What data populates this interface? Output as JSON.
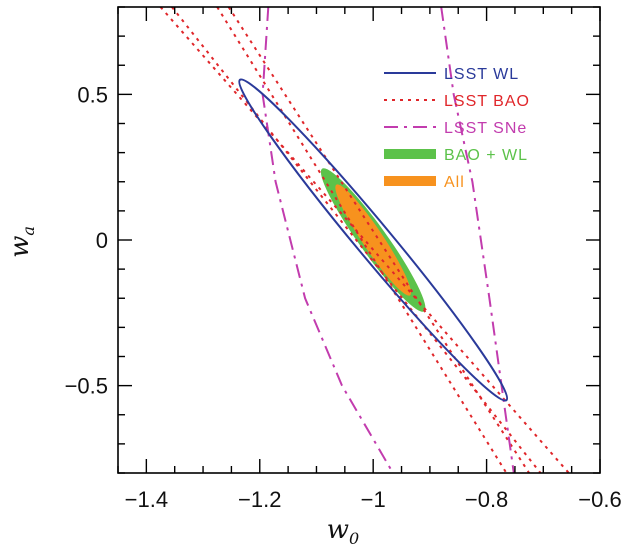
{
  "chart_data": {
    "type": "contour",
    "xlabel": "w",
    "xlabel_sub": "0",
    "ylabel": "w",
    "ylabel_sub": "a",
    "xlim": [
      -1.45,
      -0.6
    ],
    "ylim": [
      -0.8,
      0.8
    ],
    "x_ticks": [
      -1.4,
      -1.2,
      -1.0,
      -0.8,
      -0.6
    ],
    "x_tick_labels": [
      "−1.4",
      "−1.2",
      "−1",
      "−0.8",
      "−0.6"
    ],
    "y_ticks": [
      -0.5,
      0,
      0.5
    ],
    "y_tick_labels": [
      "−0.5",
      "0",
      "0.5"
    ],
    "legend_position": "top-right",
    "fiducial": {
      "w0": -1.0,
      "wa": 0.0
    },
    "series": [
      {
        "name": "LSST WL",
        "kind": "ellipse",
        "style": "solid",
        "color": "#2a3a9a",
        "center": [
          -1.0,
          0.0
        ],
        "endpoints": [
          [
            -1.235,
            0.55
          ],
          [
            -0.765,
            -0.55
          ]
        ],
        "minor_half_width_x": 0.04
      },
      {
        "name": "LSST BAO",
        "kind": "lines",
        "style": "dotted",
        "color": "#e0262a",
        "lines": [
          [
            [
              -1.375,
              0.8
            ],
            [
              -0.655,
              -0.8
            ]
          ],
          [
            [
              -1.355,
              0.8
            ],
            [
              -0.705,
              -0.8
            ]
          ],
          [
            [
              -1.275,
              0.8
            ],
            [
              -0.765,
              -0.8
            ]
          ],
          [
            [
              -1.255,
              0.8
            ],
            [
              -0.725,
              -0.8
            ]
          ]
        ]
      },
      {
        "name": "LSST SNe",
        "kind": "lines",
        "style": "dashdot",
        "color": "#c23cae",
        "lines": [
          [
            [
              -1.185,
              0.8
            ],
            [
              -1.195,
              0.5
            ],
            [
              -1.172,
              0.2
            ],
            [
              -1.12,
              -0.2
            ],
            [
              -1.055,
              -0.5
            ],
            [
              -0.965,
              -0.8
            ]
          ],
          [
            [
              -0.88,
              0.8
            ],
            [
              -0.858,
              0.5
            ],
            [
              -0.825,
              0.2
            ],
            [
              -0.795,
              -0.2
            ],
            [
              -0.77,
              -0.55
            ],
            [
              -0.752,
              -0.8
            ]
          ]
        ]
      },
      {
        "name": "BAO + WL",
        "kind": "filled_ellipse",
        "color": "#5cc24a",
        "center": [
          -1.0,
          0.0
        ],
        "endpoints": [
          [
            -1.09,
            0.24
          ],
          [
            -0.91,
            -0.25
          ]
        ],
        "minor_half_width_x": 0.03
      },
      {
        "name": "All",
        "kind": "filled_ellipse",
        "color": "#f7921e",
        "center": [
          -1.0,
          0.0
        ],
        "endpoints": [
          [
            -1.065,
            0.19
          ],
          [
            -0.935,
            -0.19
          ]
        ],
        "minor_half_width_x": 0.022
      }
    ]
  }
}
